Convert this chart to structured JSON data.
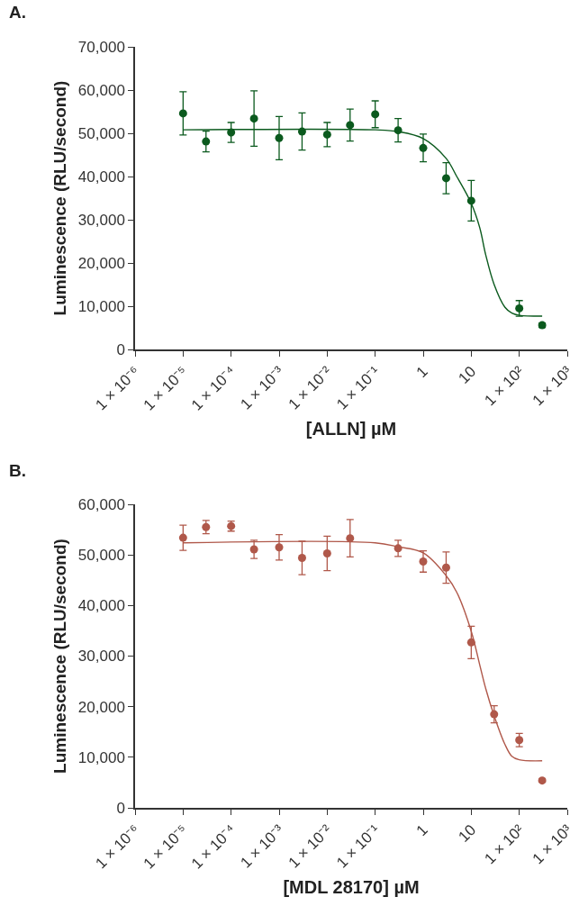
{
  "chart_data": [
    {
      "type": "scatter",
      "title": "A.",
      "xlabel": "[ALLN] µM",
      "ylabel": "Luminescence (RLU/second)",
      "log": "x",
      "xlim": [
        1e-06,
        1000
      ],
      "xticks": [
        {
          "value": 1e-06,
          "label": "1 × 10⁻⁶"
        },
        {
          "value": 1e-05,
          "label": "1 × 10⁻⁵"
        },
        {
          "value": 0.0001,
          "label": "1 × 10⁻⁴"
        },
        {
          "value": 0.001,
          "label": "1 × 10⁻³"
        },
        {
          "value": 0.01,
          "label": "1 × 10⁻²"
        },
        {
          "value": 0.1,
          "label": "1 × 10⁻¹"
        },
        {
          "value": 1,
          "label": "1"
        },
        {
          "value": 10,
          "label": "10"
        },
        {
          "value": 100,
          "label": "1 × 10²"
        },
        {
          "value": 1000,
          "label": "1 × 10³"
        }
      ],
      "ylim": [
        0,
        70000
      ],
      "yticks": [
        {
          "value": 0,
          "label": "0"
        },
        {
          "value": 10000,
          "label": "10,000"
        },
        {
          "value": 20000,
          "label": "20,000"
        },
        {
          "value": 30000,
          "label": "30,000"
        },
        {
          "value": 40000,
          "label": "40,000"
        },
        {
          "value": 50000,
          "label": "50,000"
        },
        {
          "value": 60000,
          "label": "60,000"
        },
        {
          "value": 70000,
          "label": "70,000"
        }
      ],
      "series": [
        {
          "marker": "circle",
          "color": "#0b5a1e",
          "x": [
            1e-05,
            3e-05,
            0.0001,
            0.0003,
            0.001,
            0.003,
            0.01,
            0.03,
            0.1,
            0.3,
            1,
            3,
            10,
            100,
            300
          ],
          "values": [
            54600,
            48100,
            50200,
            53400,
            48900,
            50400,
            49700,
            51900,
            54400,
            50700,
            46600,
            39600,
            34400,
            9500,
            5600
          ],
          "errors": [
            5000,
            2400,
            2300,
            6400,
            5000,
            4300,
            2800,
            3700,
            3100,
            2700,
            3200,
            3600,
            4700,
            1800,
            500
          ]
        },
        {
          "type": "line",
          "color": "#0b5a1e",
          "x": [
            1e-05,
            0.1,
            0.3,
            1,
            3,
            5,
            10,
            15,
            20,
            30,
            50,
            70,
            100,
            300
          ],
          "values": [
            50800,
            50800,
            50400,
            48800,
            44200,
            40000,
            33800,
            28200,
            21900,
            15000,
            9800,
            8400,
            7900,
            7700
          ]
        }
      ]
    },
    {
      "type": "scatter",
      "title": "B.",
      "xlabel": "[MDL 28170] µM",
      "ylabel": "Luminescence (RLU/second)",
      "log": "x",
      "xlim": [
        1e-06,
        1000
      ],
      "xticks": [
        {
          "value": 1e-06,
          "label": "1 × 10⁻⁶"
        },
        {
          "value": 1e-05,
          "label": "1 × 10⁻⁵"
        },
        {
          "value": 0.0001,
          "label": "1 × 10⁻⁴"
        },
        {
          "value": 0.001,
          "label": "1 × 10⁻³"
        },
        {
          "value": 0.01,
          "label": "1 × 10⁻²"
        },
        {
          "value": 0.1,
          "label": "1 × 10⁻¹"
        },
        {
          "value": 1,
          "label": "1"
        },
        {
          "value": 10,
          "label": "10"
        },
        {
          "value": 100,
          "label": "1 × 10²"
        },
        {
          "value": 1000,
          "label": "1 × 10³"
        }
      ],
      "ylim": [
        0,
        60000
      ],
      "yticks": [
        {
          "value": 0,
          "label": "0"
        },
        {
          "value": 10000,
          "label": "10,000"
        },
        {
          "value": 20000,
          "label": "20,000"
        },
        {
          "value": 30000,
          "label": "30,000"
        },
        {
          "value": 40000,
          "label": "40,000"
        },
        {
          "value": 50000,
          "label": "50,000"
        },
        {
          "value": 60000,
          "label": "60,000"
        }
      ],
      "series": [
        {
          "marker": "circle",
          "color": "#b0584a",
          "x": [
            1e-05,
            3e-05,
            0.0001,
            0.0003,
            0.001,
            0.003,
            0.01,
            0.03,
            0.3,
            1,
            3,
            10,
            30,
            100,
            300
          ],
          "values": [
            53400,
            55500,
            55700,
            51100,
            51500,
            49400,
            50300,
            53300,
            51300,
            48700,
            47500,
            32700,
            18500,
            13400,
            5400
          ],
          "errors": [
            2500,
            1300,
            1000,
            1800,
            2500,
            3300,
            3400,
            3700,
            1600,
            2100,
            3100,
            3200,
            1700,
            1300,
            300
          ]
        },
        {
          "type": "line",
          "color": "#b0584a",
          "x": [
            1e-05,
            0.1,
            0.3,
            1,
            3,
            5,
            10,
            15,
            20,
            30,
            50,
            70,
            100,
            300
          ],
          "values": [
            52400,
            52400,
            51600,
            50400,
            45900,
            42600,
            34900,
            28300,
            23600,
            18200,
            12600,
            10200,
            9500,
            9300
          ]
        }
      ]
    }
  ]
}
